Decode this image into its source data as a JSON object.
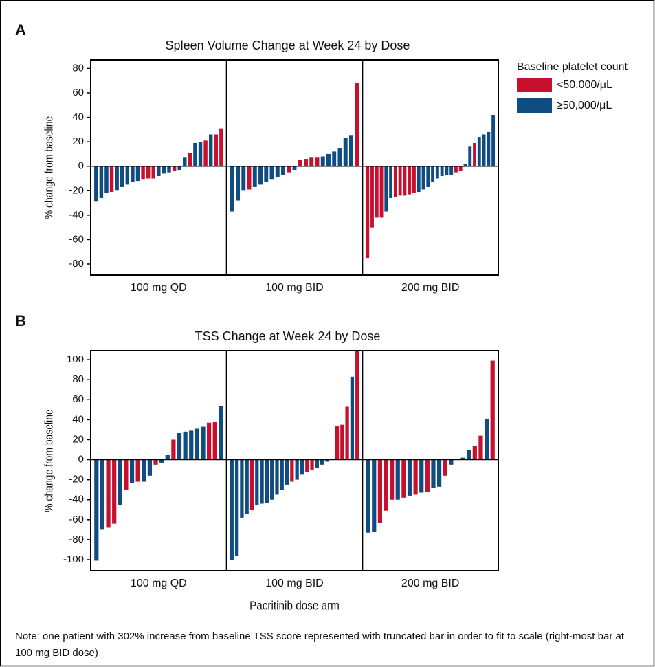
{
  "chart_data": [
    {
      "type": "bar",
      "label": "A",
      "title": "Spleen Volume Change at Week 24 by Dose",
      "ylabel": "% change from baseline",
      "ylim": [
        -89,
        87
      ],
      "yticks": [
        -80,
        -60,
        -40,
        -20,
        0,
        20,
        40,
        60,
        80
      ],
      "panels": [
        {
          "category": "100 mg QD",
          "values": [
            -29,
            -26,
            -22,
            -21,
            -20,
            -17,
            -15,
            -13,
            -12,
            -11,
            -10,
            -10,
            -8,
            -6,
            -5,
            -4,
            -3,
            7,
            11,
            19,
            20,
            21,
            26,
            26,
            31
          ],
          "series": [
            1,
            1,
            1,
            0,
            1,
            1,
            1,
            1,
            1,
            0,
            0,
            0,
            1,
            1,
            1,
            0,
            1,
            1,
            0,
            1,
            1,
            0,
            1,
            0,
            0
          ]
        },
        {
          "category": "100 mg BID",
          "values": [
            -37,
            -28,
            -20,
            -19,
            -17,
            -15,
            -13,
            -11,
            -9,
            -7,
            -5,
            -3,
            5,
            6,
            7,
            7,
            8,
            10,
            12,
            15,
            23,
            25,
            68
          ],
          "series": [
            1,
            1,
            1,
            0,
            1,
            1,
            1,
            1,
            1,
            1,
            0,
            1,
            0,
            0,
            0,
            0,
            1,
            1,
            1,
            1,
            1,
            1,
            0
          ]
        },
        {
          "category": "200 mg BID",
          "values": [
            -75,
            -50,
            -42,
            -42,
            -37,
            -26,
            -25,
            -24,
            -24,
            -23,
            -22,
            -21,
            -19,
            -17,
            -13,
            -10,
            -8,
            -7,
            -7,
            -5,
            -4,
            2,
            16,
            19,
            24,
            26,
            28,
            42
          ],
          "series": [
            0,
            0,
            0,
            0,
            1,
            1,
            0,
            0,
            0,
            0,
            0,
            1,
            1,
            1,
            1,
            1,
            1,
            1,
            1,
            0,
            0,
            1,
            1,
            0,
            1,
            1,
            1,
            1
          ]
        }
      ]
    },
    {
      "type": "bar",
      "label": "B",
      "title": "TSS Change at Week 24 by Dose",
      "ylabel": "% change from baseline",
      "xlabel": "Pacritinib dose arm",
      "ylim": [
        -111,
        109
      ],
      "yticks": [
        -100,
        -80,
        -60,
        -40,
        -20,
        0,
        20,
        40,
        60,
        80,
        100
      ],
      "panels": [
        {
          "category": "100 mg QD",
          "values": [
            -101,
            -70,
            -68,
            -64,
            -45,
            -30,
            -23,
            -22,
            -22,
            -16,
            -5,
            -3,
            5,
            20,
            27,
            28,
            29,
            31,
            33,
            37,
            38,
            54
          ],
          "series": [
            1,
            1,
            0,
            0,
            1,
            0,
            1,
            0,
            1,
            1,
            0,
            1,
            1,
            0,
            1,
            1,
            1,
            1,
            1,
            0,
            0,
            1
          ]
        },
        {
          "category": "100 mg BID",
          "values": [
            -100,
            -96,
            -58,
            -54,
            -50,
            -45,
            -44,
            -43,
            -40,
            -35,
            -30,
            -25,
            -22,
            -20,
            -15,
            -12,
            -10,
            -8,
            -5,
            -2,
            1,
            34,
            35,
            53,
            83,
            109
          ],
          "series": [
            1,
            1,
            1,
            1,
            0,
            1,
            1,
            1,
            1,
            1,
            1,
            1,
            0,
            1,
            1,
            0,
            0,
            1,
            1,
            1,
            1,
            0,
            0,
            0,
            1,
            0
          ]
        },
        {
          "category": "200 mg BID",
          "values": [
            -73,
            -72,
            -63,
            -51,
            -40,
            -40,
            -38,
            -36,
            -35,
            -33,
            -32,
            -28,
            -27,
            -16,
            -5,
            1,
            2,
            10,
            14,
            24,
            41,
            99
          ],
          "series": [
            1,
            1,
            0,
            0,
            0,
            1,
            0,
            1,
            0,
            1,
            0,
            1,
            1,
            0,
            1,
            1,
            1,
            1,
            0,
            0,
            1,
            0
          ]
        }
      ]
    }
  ],
  "legend": {
    "title": "Baseline platelet count",
    "series": [
      {
        "name": "<50,000/μL",
        "color": "#c8102e"
      },
      {
        "name": "≥50,000/μL",
        "color": "#0f4c81"
      }
    ]
  },
  "note": "Note: one patient with 302% increase from baseline TSS score represented with truncated bar in order to fit to scale (right-most bar at 100 mg BID dose)"
}
